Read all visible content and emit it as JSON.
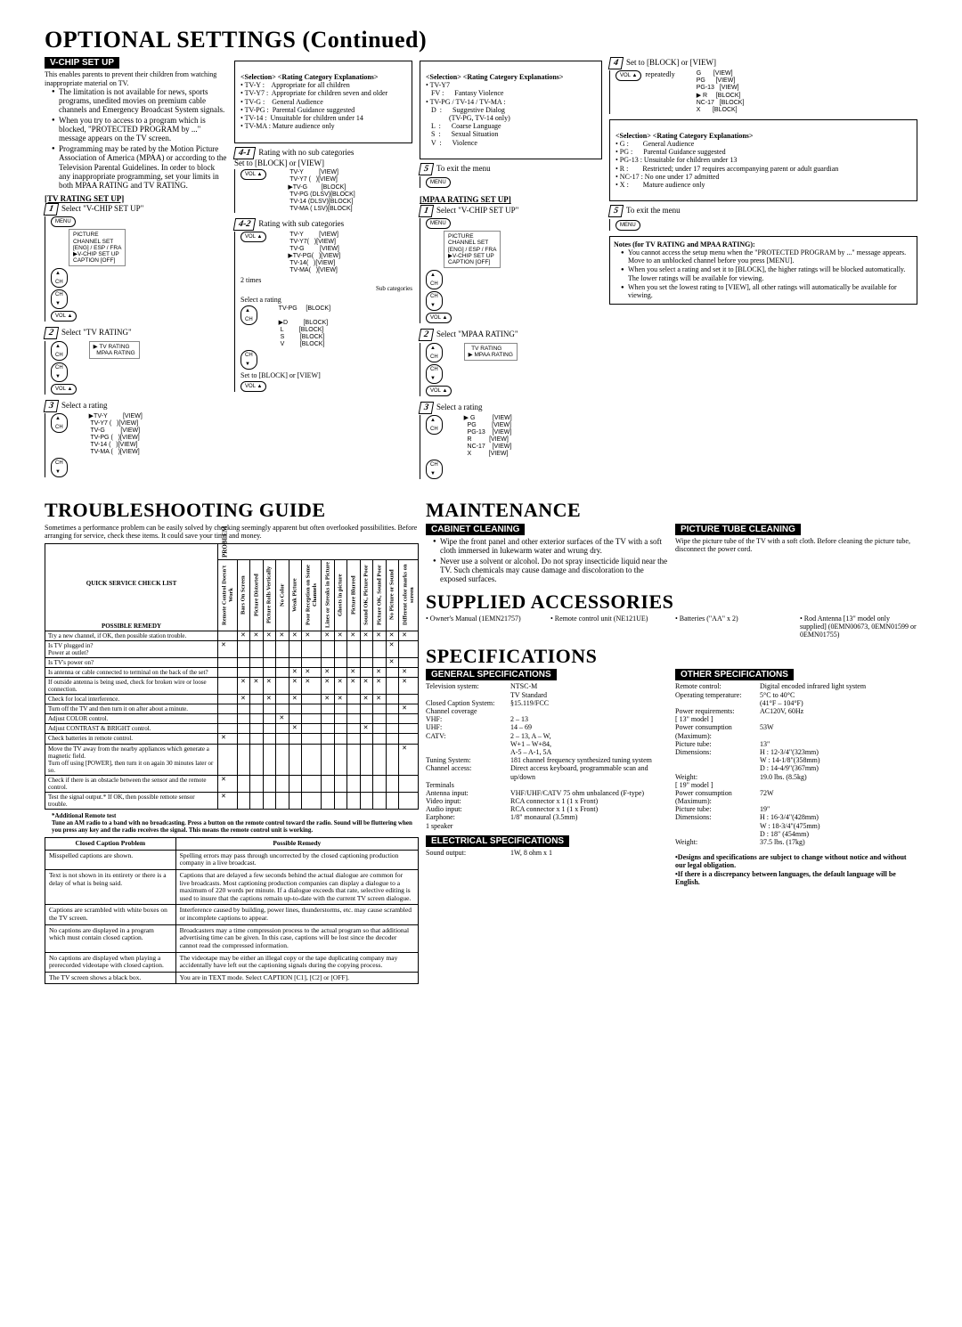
{
  "titles": {
    "optional": "OPTIONAL SETTINGS (Continued)",
    "troubleshoot": "TROUBLESHOOTING GUIDE",
    "maintenance": "MAINTENANCE",
    "supplied": "SUPPLIED ACCESSORIES",
    "specs": "SPECIFICATIONS"
  },
  "bars": {
    "vchip": "V-CHIP SET UP",
    "tvrating": "[TV RATING SET UP]",
    "mpaa": "[MPAA RATING SET UP]",
    "cabinet": "CABINET CLEANING",
    "tube": "PICTURE TUBE CLEANING",
    "genspec": "GENERAL SPECIFICATIONS",
    "elspec": "ELECTRICAL SPECIFICATIONS",
    "othspec": "OTHER SPECIFICATIONS"
  },
  "vchip_intro": "This enables parents to prevent their children from watching inappropriate material on TV.",
  "vchip_bullets": [
    "The limitation is not available for news, sports programs, unedited movies on premium cable channels and Emergency Broadcast System signals.",
    "When you try to access to a program which is blocked, \"PROTECTED PROGRAM by ...\" message appears on the TV screen.",
    "Programming may be rated by the Motion Picture Association of America (MPAA) or according to the Television Parental Guidelines. In order to block any inappropriate programming, set your limits in both MPAA RATING and TV RATING."
  ],
  "sel_expl_head": "<Selection>  <Rating Category Explanations>",
  "sel_expl": [
    "• TV-Y :    Appropriate for all children",
    "• TV-Y7 :  Appropriate for children seven and older",
    "• TV-G :    General Audience",
    "• TV-PG :  Parental Guidance suggested",
    "• TV-14 :  Unsuitable for children under 14",
    "• TV-MA : Mature audience only"
  ],
  "sel_expl2": [
    "• TV-Y7",
    "   FV :      Fantasy Violence",
    "• TV-PG / TV-14 / TV-MA :",
    "   D  :      Suggestive Dialog",
    "             (TV-PG, TV-14 only)",
    "   L  :      Coarse Language",
    "   S  :      Sexual Situation",
    "   V  :      Violence"
  ],
  "sel_expl3": [
    "• G :        General Audience",
    "• PG :      Parental Guidance suggested",
    "• PG-13 : Unsuitable for children under 13",
    "• R :        Restricted; under 17 requires accompanying parent or adult guardian",
    "• NC-17 : No one under 17 admitted",
    "• X :        Mature audience only"
  ],
  "steps": {
    "s1": "Select \"V-CHIP SET UP\"",
    "s2": "Select \"TV RATING\"",
    "s3": "Select a rating",
    "s41": "Rating with no sub categories\nSet to [BLOCK] or [VIEW]",
    "s42": "Rating with sub categories",
    "s42b": "2 times",
    "s42c": "Select a rating",
    "s42d": "Set to [BLOCK] or [VIEW]",
    "s5": "To exit the menu",
    "m1": "Select \"V-CHIP SET UP\"",
    "m2": "Select \"MPAA RATING\"",
    "m3": "Select a rating",
    "m4": "Set to [BLOCK] or [VIEW]",
    "m4b": "repeatedly",
    "m5": "To exit the menu"
  },
  "menu_onscreen": "PICTURE\nCHANNEL SET\n[ENG] / ESP / FRA\n▶V-CHIP SET UP\nCAPTION [OFF]",
  "menu_tvmpaa": "▶ TV RATING\n  MPAA RATING",
  "menu_mpaa": "  TV RATING\n▶ MPAA RATING",
  "rating_tv": "▶TV-Y         [VIEW]\n TV-Y7 (   )[VIEW]\n TV-G         [VIEW]\n TV-PG (   )[VIEW]\n TV-14 (   )[VIEW]\n TV-MA (   )[VIEW]",
  "rating_41": " TV-Y         [VIEW]\n TV-Y7 (   )[VIEW]\n▶TV-G        [BLOCK]\n TV-PG (DLSV)[BLOCK]\n TV-14 (DLSV)[BLOCK]\n TV-MA ( LSV)[BLOCK]",
  "rating_42a": " TV-Y         [VIEW]\n TV-Y7(   )[VIEW]\n TV-G         [VIEW]\n▶TV-PG(   )[VIEW]\n TV-14(   )[VIEW]\n TV-MA(   )[VIEW]",
  "rating_42a_label": "Sub categories",
  "rating_42b": "TV-PG     [BLOCK]\n\n▶D         [BLOCK]\n L         [BLOCK]\n S         [BLOCK]\n V         [BLOCK]",
  "rating_mpaa": "▶ G          [VIEW]\n  PG         [VIEW]\n  PG-13    [VIEW]\n  R          [VIEW]\n  NC-17    [VIEW]\n  X          [VIEW]",
  "rating_mpaa4": "G       [VIEW]\nPG      [VIEW]\nPG-13   [VIEW]\n▶ R     [BLOCK]\nNC-17   [BLOCK]\nX       [BLOCK]",
  "notes_title": "Notes (for TV RATING and MPAA RATING):",
  "notes": [
    "You cannot access the setup menu when the \"PROTECTED PROGRAM by ...\" message appears. Move to an unblocked channel before you press [MENU].",
    "When you select a rating and set it to [BLOCK], the higher ratings will be blocked automatically. The lower ratings will be available for viewing.",
    "When you set the lowest rating to [VIEW], all other ratings will automatically be available for viewing."
  ],
  "ts_intro": "Sometimes a performance problem can be easily solved by checking seemingly apparent but often overlooked possibilities. Before arranging for service, check these items. It could save your time and money.",
  "ts_cols": [
    "Remote Control Doesn't Work",
    "Bars On Screen",
    "Picture Distorted",
    "Picture Rolls Vertically",
    "No Color",
    "Weak Picture",
    "Poor Reception on Some Channels",
    "Lines or Streaks in Picture",
    "Ghosts in picture",
    "Picture Blurred",
    "Sound OK, Picture Poor",
    "Picture OK, Sound Poor",
    "No Picture or Sound",
    "Different color marks on screen"
  ],
  "ts_head_problem": "PROBLEM",
  "ts_head_qscl": "QUICK SERVICE CHECK LIST",
  "ts_head_remedy": "POSSIBLE REMEDY",
  "ts_rows": [
    {
      "r": "Try a new channel, if OK, then possible station trouble.",
      "x": [
        0,
        1,
        1,
        1,
        1,
        1,
        1,
        1,
        1,
        1,
        1,
        1,
        1,
        1
      ]
    },
    {
      "r": "Is TV plugged in?\nPower at outlet?",
      "x": [
        1,
        0,
        0,
        0,
        0,
        0,
        0,
        0,
        0,
        0,
        0,
        0,
        1,
        0
      ]
    },
    {
      "r": "Is TV's power on?",
      "x": [
        0,
        0,
        0,
        0,
        0,
        0,
        0,
        0,
        0,
        0,
        0,
        0,
        1,
        0
      ]
    },
    {
      "r": "Is antenna or cable connected to terminal on the back of the set?",
      "x": [
        0,
        0,
        0,
        0,
        0,
        1,
        1,
        1,
        0,
        1,
        0,
        1,
        0,
        1
      ]
    },
    {
      "r": "If outside antenna is being used, check for broken wire or loose connection.",
      "x": [
        0,
        1,
        1,
        1,
        0,
        1,
        1,
        1,
        1,
        1,
        1,
        1,
        0,
        1
      ]
    },
    {
      "r": "Check for local interference.",
      "x": [
        0,
        1,
        0,
        1,
        0,
        1,
        0,
        1,
        1,
        0,
        1,
        1,
        0,
        0
      ]
    },
    {
      "r": "Turn off the TV and then turn it on after about a minute.",
      "x": [
        0,
        0,
        0,
        0,
        0,
        0,
        0,
        0,
        0,
        0,
        0,
        0,
        0,
        1
      ]
    },
    {
      "r": "Adjust COLOR control.",
      "x": [
        0,
        0,
        0,
        0,
        1,
        0,
        0,
        0,
        0,
        0,
        0,
        0,
        0,
        0
      ]
    },
    {
      "r": "Adjust CONTRAST & BRIGHT control.",
      "x": [
        0,
        0,
        0,
        0,
        0,
        1,
        0,
        0,
        0,
        0,
        1,
        0,
        0,
        0
      ]
    },
    {
      "r": "Check batteries in remote control.",
      "x": [
        1,
        0,
        0,
        0,
        0,
        0,
        0,
        0,
        0,
        0,
        0,
        0,
        0,
        0
      ]
    },
    {
      "r": "Move the TV away from the nearby appliances which generate a magnetic field.\nTurn off using [POWER], then turn it on again 30 minutes later or so.",
      "x": [
        0,
        0,
        0,
        0,
        0,
        0,
        0,
        0,
        0,
        0,
        0,
        0,
        0,
        1
      ]
    },
    {
      "r": "Check if there is an obstacle between the sensor and the remote control.",
      "x": [
        1,
        0,
        0,
        0,
        0,
        0,
        0,
        0,
        0,
        0,
        0,
        0,
        0,
        0
      ]
    },
    {
      "r": "Test the signal output.*  If OK, then possible remote sensor trouble.",
      "x": [
        1,
        0,
        0,
        0,
        0,
        0,
        0,
        0,
        0,
        0,
        0,
        0,
        0,
        0
      ]
    }
  ],
  "ts_footnote_head": "*Additional Remote test",
  "ts_footnote": "Tune an AM radio to a band with no broadcasting. Press a button on the remote control toward the radio. Sound will be fluttering when you press any key and the radio receives the signal. This means the remote control unit is working.",
  "cc_head1": "Closed Caption Problem",
  "cc_head2": "Possible Remedy",
  "cc_rows": [
    [
      "Misspelled captions are shown.",
      "Spelling errors may pass through uncorrected by the closed captioning production company in a live broadcast."
    ],
    [
      "Text is not shown in its entirety or there is a delay of what is being said.",
      "Captions that are delayed a few seconds behind the actual dialogue are common for live broadcasts. Most captioning production companies can display a dialogue to a maximum of 220 words per minute. If a dialogue exceeds that rate, selective editing is used to insure that the captions remain up-to-date with the current TV screen dialogue."
    ],
    [
      "Captions are scrambled with white boxes on the TV screen.",
      "Interference caused by building, power lines, thunderstorms, etc. may cause scrambled or incomplete captions to appear."
    ],
    [
      "No captions are displayed in a program which must contain closed caption.",
      "Broadcasters may  a time compression process to the actual program so that additional advertising time can be given. In this case, captions will be lost since the decoder cannot read the compressed information."
    ],
    [
      "No captions are displayed when playing a prerecorded videotape with closed caption.",
      "The videotape may be either an illegal copy or the tape duplicating company may accidentally have left out the captioning signals during the copying process."
    ],
    [
      "The TV screen shows a black box.",
      "You are in TEXT mode. Select CAPTION [C1], [C2] or [OFF]."
    ]
  ],
  "maint_cab": [
    "Wipe the front panel and other exterior surfaces of the TV with a soft cloth immersed in lukewarm water and wrung dry.",
    "Never use a solvent or alcohol. Do not spray insecticide liquid near the TV. Such chemicals may cause damage and discoloration to the exposed surfaces."
  ],
  "maint_tube": "Wipe the picture tube of the TV with a soft cloth. Before cleaning the picture tube, disconnect the power cord.",
  "supplied": [
    "Owner's Manual (1EMN21757)",
    "Remote control unit (NE121UE)",
    "Batteries (\"AA\" x 2)",
    "Rod Antenna [13\" model only supplied] (0EMN00673, 0EMN01599 or 0EMN01755)"
  ],
  "gspec": [
    [
      "Television system:",
      "NTSC-M\nTV Standard"
    ],
    [
      "Closed Caption System:",
      "§15.119/FCC"
    ],
    [
      "Channel coverage",
      ""
    ],
    [
      "   VHF:",
      "2 – 13"
    ],
    [
      "   UHF:",
      "14 – 69"
    ],
    [
      "   CATV:",
      "2 – 13, A – W,\nW+1 – W+84,\nA-5 – A-1, 5A"
    ],
    [
      "Tuning System:",
      "181 channel frequency synthesized tuning system"
    ],
    [
      "Channel access:",
      "Direct access keyboard, programmable scan and up/down"
    ],
    [
      "Terminals",
      ""
    ],
    [
      "   Antenna input:",
      "VHF/UHF/CATV 75 ohm unbalanced (F-type)"
    ],
    [
      "   Video input:",
      "RCA connector x 1 (1 x Front)"
    ],
    [
      "   Audio input:",
      "RCA connector x 1 (1 x Front)"
    ],
    [
      "   Earphone:",
      "1/8\" monaural (3.5mm)"
    ],
    [
      "1 speaker",
      ""
    ]
  ],
  "elspec": [
    [
      "Sound output:",
      "1W, 8 ohm x 1"
    ]
  ],
  "ospec": [
    [
      "Remote control:",
      "Digital encoded infrared light system"
    ],
    [
      "Operating temperature:",
      "5°C to 40°C\n(41°F – 104°F)"
    ],
    [
      "Power requirements:",
      "AC120V, 60Hz"
    ],
    [
      "[ 13\" model ]",
      ""
    ],
    [
      "Power consumption (Maximum):",
      "53W"
    ],
    [
      "Picture tube:",
      "13\""
    ],
    [
      "Dimensions:",
      "H :  12-3/4\"(323mm)\nW :  14-1/8\"(358mm)\nD :  14-4/9\"(367mm)"
    ],
    [
      "Weight:",
      "19.0 lbs.    (8.5kg)"
    ],
    [
      "[ 19\" model ]",
      ""
    ],
    [
      "Power consumption (Maximum):",
      "72W"
    ],
    [
      "Picture tube:",
      "19\""
    ],
    [
      "Dimensions:",
      "H :  16-3/4\"(428mm)\nW :  18-3/4\"(475mm)\nD :  18\"     (454mm)"
    ],
    [
      "Weight:",
      "37.5 lbs.    (17kg)"
    ]
  ],
  "disclaimers": [
    "•Designs and specifications are subject to change without notice and without our legal obligation.",
    "•If there is a discrepancy between languages, the default language will be English."
  ]
}
